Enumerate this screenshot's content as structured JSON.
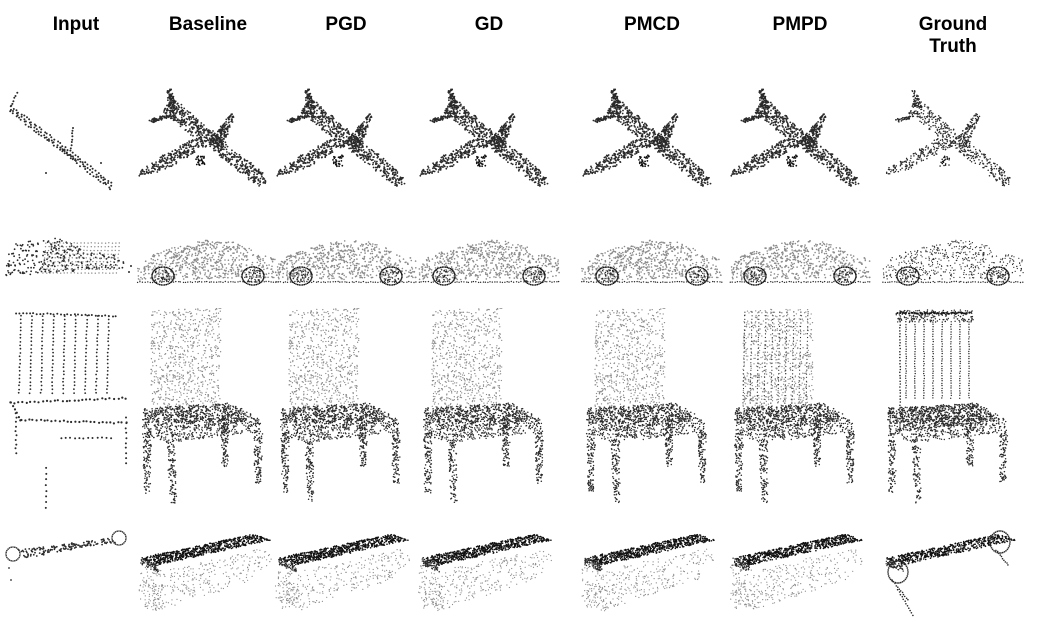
{
  "figure": {
    "columns": [
      {
        "id": "input",
        "label": "Input"
      },
      {
        "id": "baseline",
        "label": "Baseline"
      },
      {
        "id": "pgd",
        "label": "PGD"
      },
      {
        "id": "gd",
        "label": "GD"
      },
      {
        "id": "pmcd",
        "label": "PMCD"
      },
      {
        "id": "pmpd",
        "label": "PMPD"
      },
      {
        "id": "ground-truth",
        "label": "Ground\nTruth"
      }
    ],
    "rows": [
      {
        "id": "airplane",
        "object": "airplane-point-cloud"
      },
      {
        "id": "car",
        "object": "car-point-cloud"
      },
      {
        "id": "chair",
        "object": "chair-point-cloud"
      },
      {
        "id": "bench",
        "object": "bench-point-cloud"
      }
    ],
    "colors": {
      "point": "#2a2a2a",
      "point_light": "#8a8a8a",
      "background": "#ffffff"
    }
  }
}
